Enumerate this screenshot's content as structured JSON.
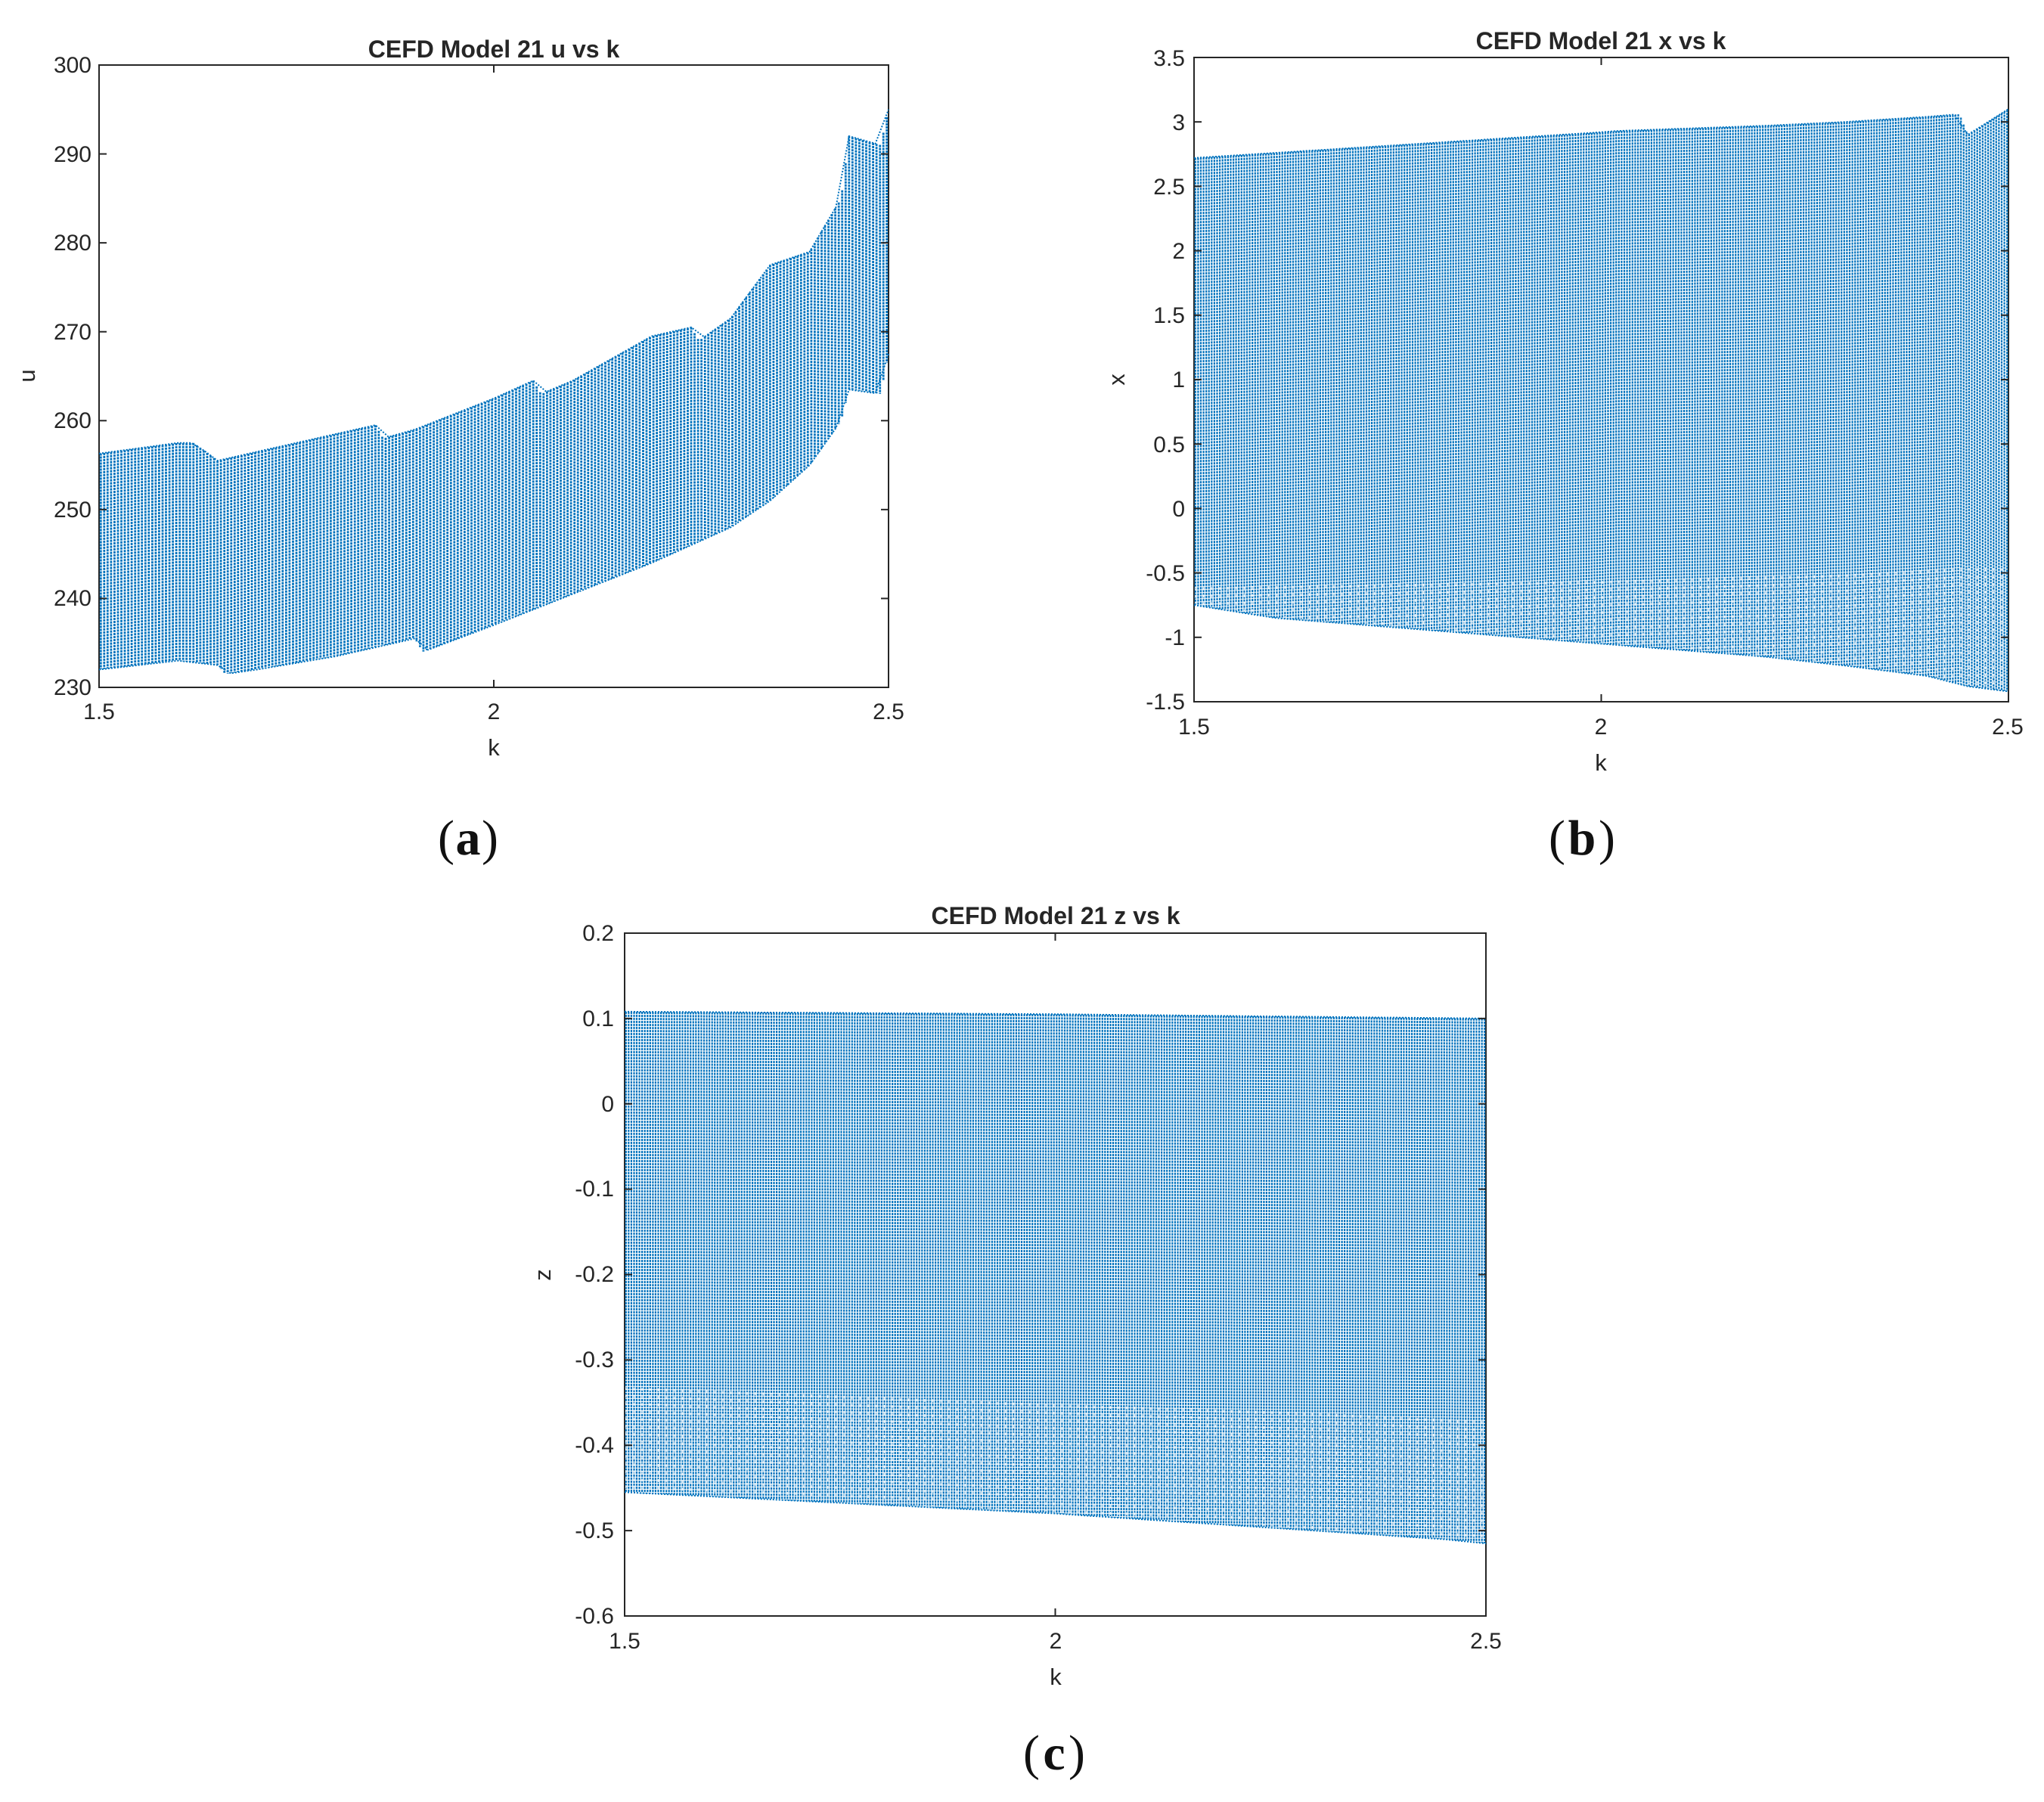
{
  "chart_data": [
    {
      "id": "a",
      "type": "scatter",
      "title": "CEFD Model 21 u vs k",
      "xlabel": "k",
      "ylabel": "u",
      "xlim": [
        1.5,
        2.5
      ],
      "ylim": [
        230,
        300
      ],
      "xticks": [
        "1.5",
        "2",
        "2.5"
      ],
      "yticks": [
        "230",
        "240",
        "250",
        "260",
        "270",
        "280",
        "290",
        "300"
      ],
      "panel_label": "a",
      "color": "#0072BD",
      "series": [
        {
          "name": "upper envelope u",
          "x": [
            1.5,
            1.6,
            1.62,
            1.65,
            1.7,
            1.8,
            1.85,
            1.86,
            1.9,
            2.0,
            2.05,
            2.06,
            2.1,
            2.2,
            2.25,
            2.26,
            2.3,
            2.35,
            2.4,
            2.44,
            2.45,
            2.49,
            2.5
          ],
          "values": [
            256.3,
            257.5,
            257.5,
            255.5,
            256.5,
            258.5,
            259.5,
            258.0,
            259.0,
            262.5,
            264.5,
            263.0,
            264.5,
            269.5,
            270.5,
            269.0,
            271.5,
            277.5,
            279.0,
            285.0,
            292.0,
            291.0,
            295.0
          ]
        },
        {
          "name": "lower envelope u",
          "x": [
            1.5,
            1.6,
            1.65,
            1.66,
            1.7,
            1.8,
            1.9,
            1.91,
            2.0,
            2.1,
            2.2,
            2.3,
            2.35,
            2.4,
            2.44,
            2.45,
            2.49,
            2.5
          ],
          "values": [
            232.0,
            233.0,
            232.5,
            231.5,
            232.0,
            233.5,
            235.5,
            234.0,
            237.0,
            240.5,
            244.0,
            248.0,
            251.0,
            255.0,
            260.0,
            263.5,
            263.0,
            267.5
          ]
        }
      ]
    },
    {
      "id": "b",
      "type": "scatter",
      "title": "CEFD Model 21 x vs k",
      "xlabel": "k",
      "ylabel": "x",
      "xlim": [
        1.5,
        2.5
      ],
      "ylim": [
        -1.5,
        3.5
      ],
      "xticks": [
        "1.5",
        "2",
        "2.5"
      ],
      "yticks": [
        "-1.5",
        "-1",
        "-0.5",
        "0",
        "0.5",
        "1",
        "1.5",
        "2",
        "2.5",
        "3",
        "3.5"
      ],
      "panel_label": "b",
      "color": "#0072BD",
      "series": [
        {
          "name": "upper envelope x",
          "x": [
            1.5,
            1.6,
            1.8,
            2.0,
            2.02,
            2.2,
            2.3,
            2.4,
            2.44,
            2.45,
            2.5
          ],
          "values": [
            2.72,
            2.76,
            2.84,
            2.92,
            2.93,
            2.97,
            3.0,
            3.04,
            3.06,
            2.9,
            3.1
          ]
        },
        {
          "name": "lower envelope x",
          "x": [
            1.5,
            1.6,
            1.8,
            2.0,
            2.1,
            2.2,
            2.3,
            2.4,
            2.45,
            2.5
          ],
          "values": [
            -0.75,
            -0.85,
            -0.95,
            -1.05,
            -1.1,
            -1.15,
            -1.22,
            -1.3,
            -1.38,
            -1.42
          ]
        },
        {
          "name": "inner band x",
          "x": [
            1.5,
            2.0,
            2.3,
            2.45,
            2.5
          ],
          "values": [
            -0.6,
            -0.55,
            -0.5,
            -0.45,
            -0.45
          ]
        }
      ]
    },
    {
      "id": "c",
      "type": "scatter",
      "title": "CEFD Model 21 z vs k",
      "xlabel": "k",
      "ylabel": "z",
      "xlim": [
        1.5,
        2.5
      ],
      "ylim": [
        -0.6,
        0.2
      ],
      "xticks": [
        "1.5",
        "2",
        "2.5"
      ],
      "yticks": [
        "-0.6",
        "-0.5",
        "-0.4",
        "-0.3",
        "-0.2",
        "-0.1",
        "0",
        "0.1",
        "0.2"
      ],
      "panel_label": "c",
      "color": "#0072BD",
      "series": [
        {
          "name": "upper envelope z",
          "x": [
            1.5,
            2.0,
            2.5
          ],
          "values": [
            0.108,
            0.105,
            0.1
          ]
        },
        {
          "name": "lower envelope z",
          "x": [
            1.5,
            1.8,
            2.0,
            2.3,
            2.45,
            2.5
          ],
          "values": [
            -0.455,
            -0.47,
            -0.48,
            -0.5,
            -0.51,
            -0.515
          ]
        },
        {
          "name": "inner band z",
          "x": [
            1.5,
            2.0,
            2.3,
            2.5
          ],
          "values": [
            -0.33,
            -0.35,
            -0.36,
            -0.37
          ]
        }
      ]
    }
  ]
}
